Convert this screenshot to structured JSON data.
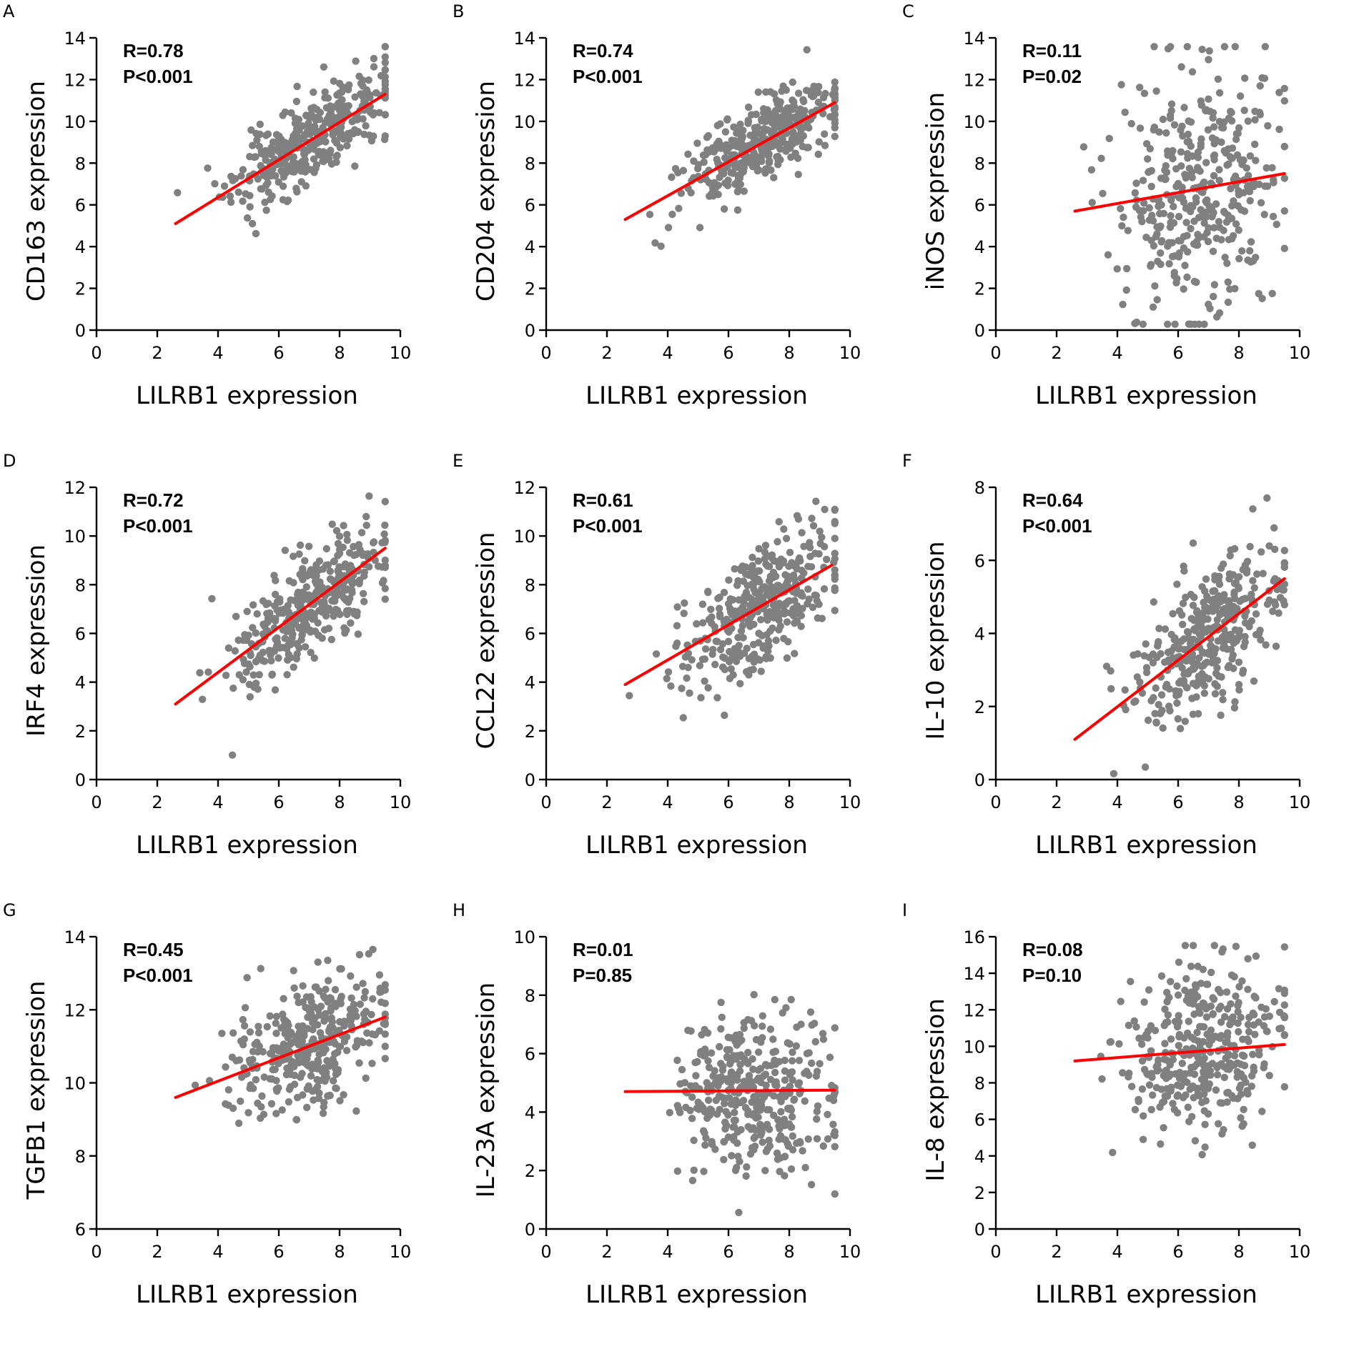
{
  "chart_data": [
    {
      "panel_label": "A",
      "type": "scatter",
      "ylabel": "CD163 expression",
      "xlabel": "LILRB1 expression",
      "xlim": [
        0,
        10
      ],
      "ylim": [
        0,
        14
      ],
      "xticks": [
        "0",
        "2",
        "4",
        "6",
        "8",
        "10"
      ],
      "yticks": [
        "0",
        "2",
        "4",
        "6",
        "8",
        "10",
        "12",
        "14"
      ],
      "stat_r": "R=0.78",
      "stat_p": "P<0.001",
      "fit": {
        "x": [
          2.6,
          9.5
        ],
        "y": [
          5.1,
          11.3
        ]
      },
      "cloud": {
        "n": 380,
        "mx": 7.0,
        "sx": 1.25,
        "slope": 0.9,
        "intercept": 2.75,
        "noise": 1.0,
        "seed": 11
      }
    },
    {
      "panel_label": "B",
      "type": "scatter",
      "ylabel": "CD204 expression",
      "xlabel": "LILRB1 expression",
      "xlim": [
        0,
        10
      ],
      "ylim": [
        0,
        14
      ],
      "xticks": [
        "0",
        "2",
        "4",
        "6",
        "8",
        "10"
      ],
      "yticks": [
        "0",
        "2",
        "4",
        "6",
        "8",
        "10",
        "12",
        "14"
      ],
      "stat_r": "R=0.74",
      "stat_p": "P<0.001",
      "fit": {
        "x": [
          2.6,
          9.5
        ],
        "y": [
          5.3,
          10.9
        ]
      },
      "cloud": {
        "n": 380,
        "mx": 7.0,
        "sx": 1.25,
        "slope": 0.81,
        "intercept": 3.2,
        "noise": 1.0,
        "seed": 23
      }
    },
    {
      "panel_label": "C",
      "type": "scatter",
      "ylabel": "iNOS expression",
      "xlabel": "LILRB1 expression",
      "xlim": [
        0,
        10
      ],
      "ylim": [
        0,
        14
      ],
      "xticks": [
        "0",
        "2",
        "4",
        "6",
        "8",
        "10"
      ],
      "yticks": [
        "0",
        "2",
        "4",
        "6",
        "8",
        "10",
        "12",
        "14"
      ],
      "stat_r": "R=0.11",
      "stat_p": "P=0.02",
      "fit": {
        "x": [
          2.6,
          9.5
        ],
        "y": [
          5.7,
          7.5
        ]
      },
      "cloud": {
        "n": 380,
        "mx": 6.8,
        "sx": 1.35,
        "slope": 0.26,
        "intercept": 5.0,
        "noise": 3.0,
        "seed": 37
      }
    },
    {
      "panel_label": "D",
      "type": "scatter",
      "ylabel": "IRF4 expression",
      "xlabel": "LILRB1 expression",
      "xlim": [
        0,
        10
      ],
      "ylim": [
        0,
        12
      ],
      "xticks": [
        "0",
        "2",
        "4",
        "6",
        "8",
        "10"
      ],
      "yticks": [
        "0",
        "2",
        "4",
        "6",
        "8",
        "10",
        "12"
      ],
      "stat_r": "R=0.72",
      "stat_p": "P<0.001",
      "fit": {
        "x": [
          2.6,
          9.5
        ],
        "y": [
          3.1,
          9.5
        ]
      },
      "cloud": {
        "n": 380,
        "mx": 7.0,
        "sx": 1.25,
        "slope": 0.93,
        "intercept": 0.7,
        "noise": 1.15,
        "seed": 41
      }
    },
    {
      "panel_label": "E",
      "type": "scatter",
      "ylabel": "CCL22 expression",
      "xlabel": "LILRB1 expression",
      "xlim": [
        0,
        10
      ],
      "ylim": [
        0,
        12
      ],
      "xticks": [
        "0",
        "2",
        "4",
        "6",
        "8",
        "10"
      ],
      "yticks": [
        "0",
        "2",
        "4",
        "6",
        "8",
        "10",
        "12"
      ],
      "stat_r": "R=0.61",
      "stat_p": "P<0.001",
      "fit": {
        "x": [
          2.6,
          9.4
        ],
        "y": [
          3.9,
          8.8
        ]
      },
      "cloud": {
        "n": 380,
        "mx": 7.0,
        "sx": 1.25,
        "slope": 0.72,
        "intercept": 2.0,
        "noise": 1.25,
        "seed": 53
      }
    },
    {
      "panel_label": "F",
      "type": "scatter",
      "ylabel": "IL-10 expression",
      "xlabel": "LILRB1 expression",
      "xlim": [
        0,
        10
      ],
      "ylim": [
        0,
        8
      ],
      "xticks": [
        "0",
        "2",
        "4",
        "6",
        "8",
        "10"
      ],
      "yticks": [
        "0",
        "2",
        "4",
        "6",
        "8"
      ],
      "stat_r": "R=0.64",
      "stat_p": "P<0.001",
      "fit": {
        "x": [
          2.6,
          9.5
        ],
        "y": [
          1.1,
          5.5
        ]
      },
      "cloud": {
        "n": 380,
        "mx": 7.0,
        "sx": 1.25,
        "slope": 0.64,
        "intercept": -0.55,
        "noise": 0.9,
        "seed": 67
      }
    },
    {
      "panel_label": "G",
      "type": "scatter",
      "ylabel": "TGFB1 expression",
      "xlabel": "LILRB1 expression",
      "xlim": [
        0,
        10
      ],
      "ylim": [
        6,
        14
      ],
      "xticks": [
        "0",
        "2",
        "4",
        "6",
        "8",
        "10"
      ],
      "yticks": [
        "6",
        "8",
        "10",
        "12",
        "14"
      ],
      "stat_r": "R=0.45",
      "stat_p": "P<0.001",
      "fit": {
        "x": [
          2.6,
          9.5
        ],
        "y": [
          9.6,
          11.8
        ]
      },
      "cloud": {
        "n": 380,
        "mx": 7.0,
        "sx": 1.3,
        "slope": 0.32,
        "intercept": 8.8,
        "noise": 0.85,
        "seed": 79
      }
    },
    {
      "panel_label": "H",
      "type": "scatter",
      "ylabel": "IL-23A expression",
      "xlabel": "LILRB1 expression",
      "xlim": [
        0,
        10
      ],
      "ylim": [
        0,
        10
      ],
      "xticks": [
        "0",
        "2",
        "4",
        "6",
        "8",
        "10"
      ],
      "yticks": [
        "0",
        "2",
        "4",
        "6",
        "8",
        "10"
      ],
      "stat_r": "R=0.01",
      "stat_p": "P=0.85",
      "fit": {
        "x": [
          2.6,
          9.5
        ],
        "y": [
          4.7,
          4.75
        ]
      },
      "cloud": {
        "n": 380,
        "mx": 6.8,
        "sx": 1.3,
        "slope": 0.01,
        "intercept": 4.65,
        "noise": 1.45,
        "seed": 83
      }
    },
    {
      "panel_label": "I",
      "type": "scatter",
      "ylabel": "IL-8 expression",
      "xlabel": "LILRB1 expression",
      "xlim": [
        0,
        10
      ],
      "ylim": [
        0,
        16
      ],
      "xticks": [
        "0",
        "2",
        "4",
        "6",
        "8",
        "10"
      ],
      "yticks": [
        "0",
        "2",
        "4",
        "6",
        "8",
        "10",
        "12",
        "14",
        "16"
      ],
      "stat_r": "R=0.08",
      "stat_p": "P=0.10",
      "fit": {
        "x": [
          2.6,
          9.5
        ],
        "y": [
          9.2,
          10.1
        ]
      },
      "cloud": {
        "n": 380,
        "mx": 6.8,
        "sx": 1.3,
        "slope": 0.13,
        "intercept": 8.85,
        "noise": 2.3,
        "seed": 97
      }
    }
  ]
}
